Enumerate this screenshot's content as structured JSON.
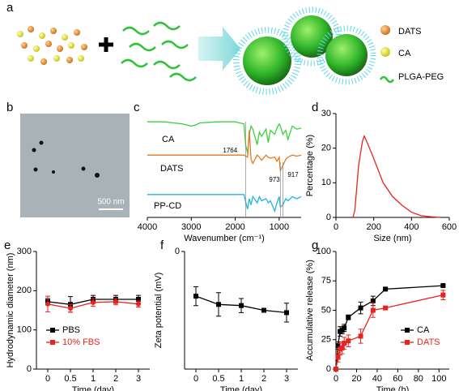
{
  "panel_a": {
    "label": "a",
    "legend": [
      "DATS",
      "CA",
      "PLGA-PEG"
    ]
  },
  "panel_b": {
    "label": "b",
    "scale_bar": "500 nm"
  },
  "chart_data": [
    {
      "panel": "c",
      "type": "spectra",
      "x_label": "Wavenumber (cm⁻¹)",
      "xlim": [
        4000,
        500
      ],
      "xticks": [
        4000,
        3000,
        2000,
        1000
      ],
      "ylim": [
        0,
        100
      ],
      "x": [
        4000,
        3600,
        3400,
        3200,
        3000,
        2900,
        2800,
        2400,
        2000,
        1900,
        1800,
        1764,
        1720,
        1680,
        1640,
        1600,
        1500,
        1450,
        1400,
        1300,
        1250,
        1200,
        1100,
        1050,
        1000,
        973,
        917,
        850,
        800,
        700,
        600,
        500
      ],
      "series": [
        {
          "name": "CA",
          "color": "#39d23a",
          "values": [
            92,
            92,
            91,
            90,
            88,
            89,
            91,
            92,
            92,
            91,
            90,
            70,
            62,
            80,
            88,
            85,
            70,
            82,
            78,
            85,
            72,
            84,
            80,
            86,
            90,
            88,
            80,
            84,
            75,
            88,
            85,
            86
          ]
        },
        {
          "name": "DATS",
          "color": "#e8781e",
          "values": [
            60,
            60,
            60,
            60,
            60,
            60,
            60,
            60,
            60,
            60,
            60,
            59,
            58,
            84,
            56,
            52,
            60,
            58,
            55,
            60,
            58,
            57,
            58,
            54,
            58,
            45,
            50,
            56,
            58,
            60,
            59,
            60
          ]
        },
        {
          "name": "PP-CD",
          "color": "#1fb5de",
          "values": [
            22,
            22,
            22,
            22,
            22,
            22,
            22,
            22,
            22,
            22,
            22,
            15,
            8,
            18,
            12,
            20,
            14,
            20,
            16,
            18,
            14,
            16,
            6,
            14,
            20,
            10,
            12,
            18,
            16,
            20,
            18,
            20
          ]
        }
      ],
      "annotations": [
        1764,
        973,
        917
      ]
    },
    {
      "panel": "d",
      "type": "line",
      "x_label": "Size (nm)",
      "y_label": "Percentage (%)",
      "xlim": [
        0,
        600
      ],
      "xticks": [
        0,
        200,
        400,
        600
      ],
      "ylim": [
        0,
        30
      ],
      "yticks": [
        0,
        10,
        20,
        30
      ],
      "series": [
        {
          "color": "#e8231e",
          "x": [
            90,
            100,
            120,
            140,
            150,
            170,
            200,
            250,
            300,
            350,
            400,
            450,
            500,
            550
          ],
          "values": [
            0,
            2,
            15,
            22,
            23.5,
            21,
            17,
            10,
            6,
            3.5,
            1.5,
            0.5,
            0.2,
            0
          ]
        }
      ]
    },
    {
      "panel": "e",
      "type": "line",
      "x_label": "Time (day)",
      "y_label": "Hydrodynamic diameter (nm)",
      "categories": [
        "0",
        "0.5",
        "1",
        "2",
        "3"
      ],
      "ylim": [
        0,
        300
      ],
      "yticks": [
        0,
        100,
        200,
        300
      ],
      "legend": "lower left",
      "series": [
        {
          "name": "PBS",
          "color": "#000000",
          "marker": "square",
          "values": [
            172,
            165,
            178,
            178,
            178
          ],
          "errors": [
            8,
            20,
            10,
            10,
            10
          ]
        },
        {
          "name": "10% FBS",
          "color": "#e8231e",
          "marker": "circle",
          "values": [
            166,
            155,
            170,
            172,
            166
          ],
          "errors": [
            20,
            10,
            10,
            8,
            8
          ]
        }
      ]
    },
    {
      "panel": "f",
      "type": "line",
      "x_label": "Time (day)",
      "y_label": "Zeta potential (mV)",
      "categories": [
        "0",
        "0.5",
        "1",
        "2",
        "3"
      ],
      "ylim": [
        -10,
        0
      ],
      "yticks": [
        0
      ],
      "series": [
        {
          "color": "#000000",
          "marker": "square",
          "values": [
            -3.8,
            -4.5,
            -4.6,
            -5,
            -5.2
          ],
          "errors": [
            0.8,
            1,
            0.6,
            0.1,
            0.8
          ]
        }
      ]
    },
    {
      "panel": "g",
      "type": "line",
      "x_label": "Time (h)",
      "y_label": "Accumulative release (%)",
      "xlim": [
        0,
        110
      ],
      "xticks": [
        0,
        20,
        40,
        60,
        80,
        100
      ],
      "ylim": [
        0,
        100
      ],
      "yticks": [
        0,
        25,
        50,
        75,
        100
      ],
      "legend": "lower right",
      "series": [
        {
          "name": "CA",
          "color": "#000000",
          "marker": "square",
          "x": [
            0,
            2,
            4,
            6,
            8,
            12,
            24,
            36,
            48,
            104
          ],
          "values": [
            0,
            20,
            32,
            33,
            35,
            44,
            52,
            58,
            68,
            71
          ],
          "errors": [
            0,
            3,
            4,
            3,
            3,
            2,
            5,
            4,
            1,
            1
          ]
        },
        {
          "name": "DATS",
          "color": "#e8231e",
          "marker": "square",
          "x": [
            0,
            2,
            4,
            6,
            8,
            12,
            24,
            36,
            48,
            104
          ],
          "values": [
            0,
            10,
            17,
            18,
            22,
            24,
            28,
            50,
            52,
            63
          ],
          "errors": [
            0,
            4,
            5,
            5,
            5,
            5,
            6,
            6,
            1,
            4
          ]
        }
      ]
    }
  ]
}
